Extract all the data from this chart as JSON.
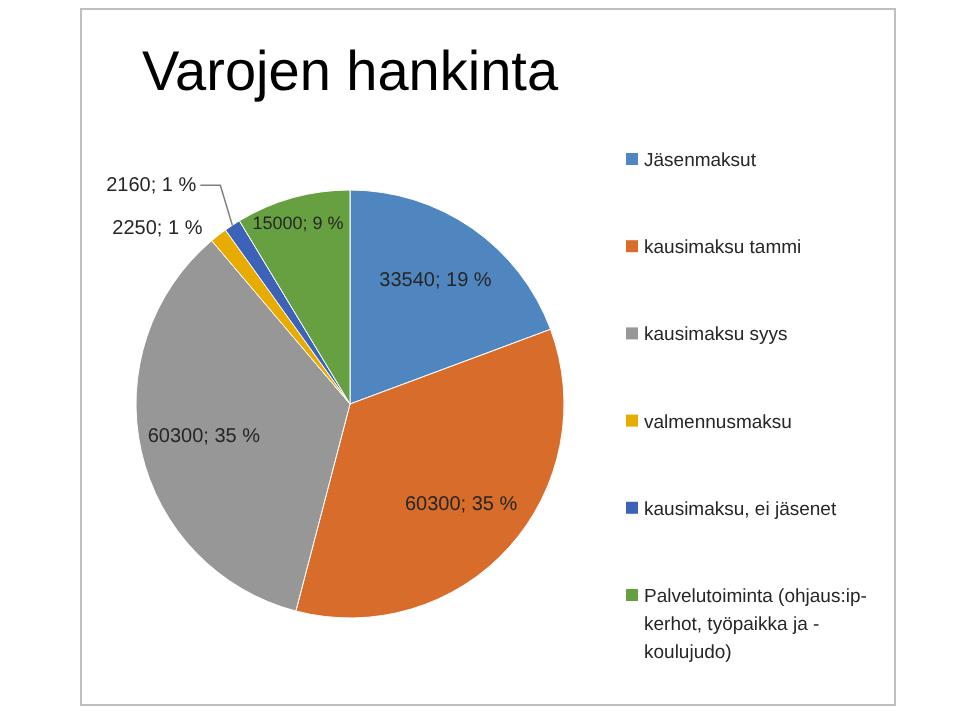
{
  "chart_data": {
    "type": "pie",
    "title": "Varojen hankinta",
    "categories": [
      "Jäsenmaksut",
      "kausimaksu  tammi",
      "kausimaksu syys",
      "valmennusmaksu",
      "kausimaksu, ei jäsenet",
      "Palvelutoiminta (ohjaus:ip-kerhot, työpaikka ja -koulujudo)"
    ],
    "values": [
      33540,
      60300,
      60300,
      2250,
      2160,
      15000
    ],
    "colors": [
      "#4f86c0",
      "#d86c2a",
      "#979797",
      "#e8ac00",
      "#3c63b8",
      "#67a040"
    ],
    "value_labels": [
      "33540; 19 %",
      "60300; 35 %",
      "60300; 35 %",
      "2250; 1 %",
      "2160; 1 %",
      "15000; 9 %"
    ],
    "legend": "right"
  }
}
